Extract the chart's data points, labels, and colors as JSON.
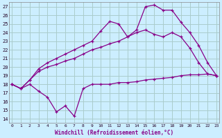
{
  "xlabel": "Windchill (Refroidissement éolien,°C)",
  "background_color": "#cceeff",
  "grid_color": "#aacccc",
  "line_color": "#880088",
  "x_ticks": [
    0,
    1,
    2,
    3,
    4,
    5,
    6,
    7,
    8,
    9,
    10,
    11,
    12,
    13,
    14,
    15,
    16,
    17,
    18,
    19,
    20,
    21,
    22,
    23
  ],
  "y_ticks": [
    14,
    15,
    16,
    17,
    18,
    19,
    20,
    21,
    22,
    23,
    24,
    25,
    26,
    27
  ],
  "xlim": [
    -0.3,
    23.3
  ],
  "ylim": [
    13.5,
    27.5
  ],
  "series": [
    {
      "x": [
        0,
        1,
        2,
        3,
        4,
        5,
        6,
        7,
        8,
        9,
        10,
        11,
        12,
        13,
        14,
        15,
        16,
        17,
        18,
        19,
        20,
        21,
        22,
        23
      ],
      "y": [
        18.0,
        17.5,
        18.0,
        17.2,
        16.5,
        14.8,
        15.5,
        14.3,
        17.5,
        18.0,
        18.0,
        18.0,
        18.2,
        18.2,
        18.3,
        18.5,
        18.6,
        18.7,
        18.8,
        19.0,
        19.1,
        19.1,
        19.2,
        19.0
      ]
    },
    {
      "x": [
        0,
        1,
        2,
        3,
        4,
        5,
        6,
        7,
        8,
        9,
        10,
        11,
        12,
        13,
        14,
        15,
        16,
        17,
        18,
        19,
        20,
        21,
        22,
        23
      ],
      "y": [
        18.0,
        17.5,
        18.5,
        19.5,
        20.0,
        20.3,
        20.7,
        21.0,
        21.5,
        22.0,
        22.3,
        22.7,
        23.0,
        23.5,
        24.0,
        24.3,
        23.8,
        23.5,
        24.0,
        23.5,
        22.2,
        20.5,
        19.2,
        19.0
      ]
    },
    {
      "x": [
        0,
        1,
        2,
        3,
        4,
        5,
        6,
        7,
        8,
        9,
        10,
        11,
        12,
        13,
        14,
        15,
        16,
        17,
        18,
        19,
        20,
        21,
        22,
        23
      ],
      "y": [
        18.0,
        17.5,
        18.5,
        19.8,
        20.5,
        21.0,
        21.5,
        22.0,
        22.5,
        23.0,
        24.2,
        25.3,
        25.0,
        23.5,
        24.3,
        27.0,
        27.2,
        26.6,
        26.6,
        25.2,
        24.0,
        22.5,
        20.5,
        19.0
      ]
    }
  ]
}
